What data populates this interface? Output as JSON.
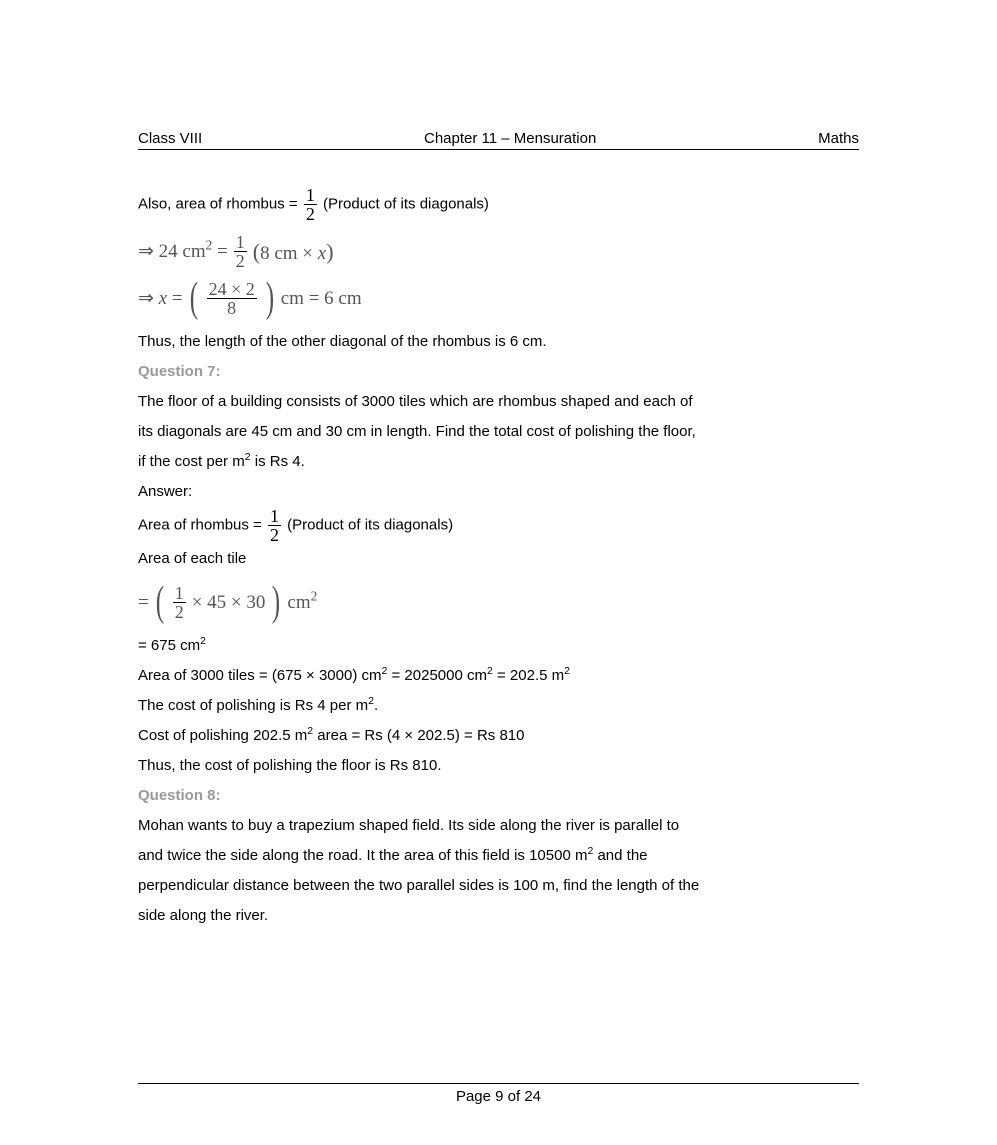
{
  "header": {
    "left": "Class VIII",
    "center": "Chapter 11 – Mensuration",
    "right": "Maths"
  },
  "footer": {
    "text": "Page 9 of 24"
  },
  "body": {
    "l1a": "Also, area of rhombus = ",
    "frac_half_num": "1",
    "frac_half_den": "2",
    "l1b": "(Product of its diagonals)",
    "eq1": {
      "lhs_a": "⇒ 24 cm",
      "lhs_sup": "2",
      "eq": " = ",
      "frac_num": "1",
      "frac_den": "2",
      "rhs_a": "(8 cm × ",
      "rhs_x": "x",
      "rhs_b": ")"
    },
    "eq2": {
      "lhs_a": "⇒ ",
      "lhs_x": "x",
      "eq": " = ",
      "frac_num": "24 × 2",
      "frac_den": "8",
      "rhs": " cm = 6 cm"
    },
    "l2": "Thus, the length of the other diagonal of the rhombus is 6 cm.",
    "q7_heading": "Question 7:",
    "q7_l1": "The floor of a building consists of 3000 tiles which are rhombus shaped and each of",
    "q7_l2": "its diagonals are 45 cm and 30 cm in length. Find the total cost of polishing the floor,",
    "q7_l3a": "if the cost per m",
    "q7_l3sup": "2",
    "q7_l3b": " is Rs 4.",
    "answer_label": "Answer:",
    "l3a": "Area of rhombus = ",
    "l3b": "(Product of its diagonals)",
    "l4": "Area of each tile",
    "eq3": {
      "pre": "=",
      "frac_num": "1",
      "frac_den": "2",
      "mid": " × 45 × 30",
      "unit": " cm",
      "sup": "2"
    },
    "l5a": "= 675 cm",
    "l5sup": "2",
    "l6a": "Area of 3000 tiles = (675 × 3000) cm",
    "l6b": " = 2025000 cm",
    "l6c": " = 202.5 m",
    "l6sup": "2",
    "l7a": "The cost of polishing is Rs 4 per m",
    "l7sup": "2",
    "l7b": ".",
    "l8a": "Cost of polishing 202.5 m",
    "l8sup": "2",
    "l8b": " area = Rs (4 × 202.5) = Rs 810",
    "l9": "Thus, the cost of polishing the floor is Rs 810.",
    "q8_heading": "Question 8:",
    "q8_l1": "Mohan wants to buy a trapezium shaped field. Its side along the river is parallel to",
    "q8_l2a": "and twice the side along the road. It the area of this field is 10500 m",
    "q8_l2sup": "2",
    "q8_l2b": " and the",
    "q8_l3": "perpendicular distance between the two parallel sides is 100 m, find the length of the",
    "q8_l4": "side along the river."
  },
  "colors": {
    "text": "#000000",
    "heading_muted": "#9a9a9a",
    "equation_gray": "#555555",
    "background": "#ffffff"
  },
  "typography": {
    "body_family": "Verdana",
    "body_size_pt": 11,
    "math_family": "Times New Roman"
  }
}
